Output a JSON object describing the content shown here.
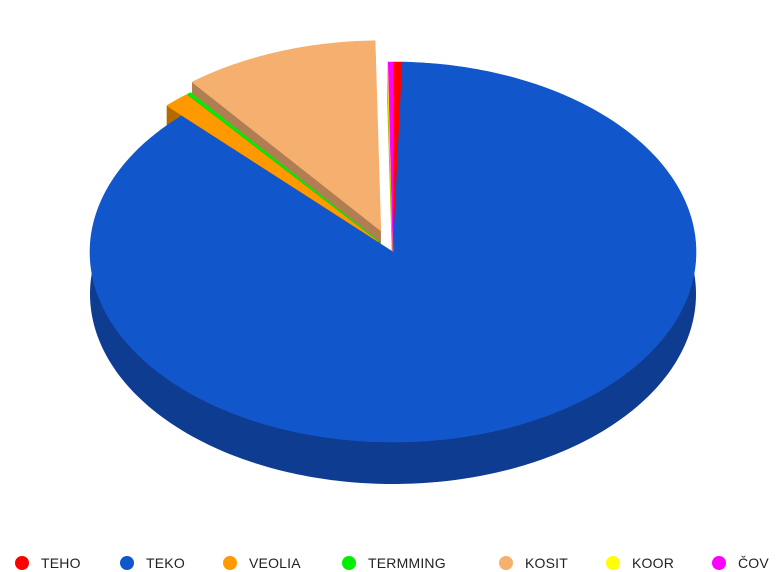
{
  "chart_data": {
    "type": "pie",
    "variant": "3d",
    "title": "",
    "categories": [
      "TEHO",
      "TEKO",
      "VEOLIA",
      "TERMMING",
      "KOSIT",
      "KOOR",
      "ČOV"
    ],
    "values": [
      0.5,
      87.2,
      1.4,
      0.2,
      10.4,
      0.05,
      0.25
    ],
    "colors": [
      "#ff0000",
      "#1256cc",
      "#ff9900",
      "#00ee00",
      "#f5b06f",
      "#ffff00",
      "#ff00ff"
    ],
    "side_colors": [
      "#b30000",
      "#0e3c91",
      "#b36b00",
      "#00a600",
      "#b07e52",
      "#b3b300",
      "#b300b3"
    ],
    "legend_position": "bottom"
  }
}
